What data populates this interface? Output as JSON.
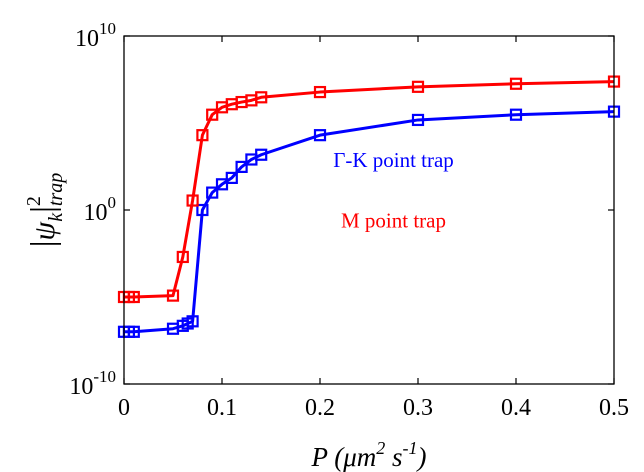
{
  "chart_data": {
    "type": "line",
    "xlabel": "P (μm2 s-1)",
    "ylabel": "|ψk|2trap",
    "xlim": [
      0,
      0.5
    ],
    "ylim": [
      1e-10,
      10000000000.0
    ],
    "yscale": "log",
    "x_ticks": [
      "0",
      "0.1",
      "0.2",
      "0.3",
      "0.4",
      "0.5"
    ],
    "x_tick_values": [
      0,
      0.1,
      0.2,
      0.3,
      0.4,
      0.5
    ],
    "y_ticks": [
      {
        "value": 1e-10,
        "base": "10",
        "exp": "-10"
      },
      {
        "value": 1,
        "base": "10",
        "exp": "0"
      },
      {
        "value": 10000000000.0,
        "base": "10",
        "exp": "10"
      }
    ],
    "grid": false,
    "series": [
      {
        "name": "M point trap",
        "color": "#ff0000",
        "marker": "square",
        "x": [
          0,
          0.005,
          0.01,
          0.05,
          0.06,
          0.07,
          0.08,
          0.09,
          0.1,
          0.11,
          0.12,
          0.13,
          0.14,
          0.2,
          0.3,
          0.4,
          0.5
        ],
        "y": [
          1e-05,
          1e-05,
          1e-05,
          1.2e-05,
          0.002,
          3.5,
          20000.0,
          300000.0,
          800000.0,
          1200000.0,
          1600000.0,
          2000000.0,
          3000000.0,
          6000000.0,
          12000000.0,
          18000000.0,
          24000000.0
        ]
      },
      {
        "name": "Γ-K point trap",
        "color": "#0000ff",
        "marker": "square",
        "x": [
          0,
          0.005,
          0.01,
          0.05,
          0.06,
          0.065,
          0.07,
          0.08,
          0.09,
          0.1,
          0.11,
          0.12,
          0.13,
          0.14,
          0.2,
          0.3,
          0.4,
          0.5
        ],
        "y": [
          1e-07,
          1e-07,
          1e-07,
          1.5e-07,
          2.2e-07,
          3e-07,
          4e-07,
          1,
          10,
          30,
          70,
          300,
          800,
          1500,
          20000.0,
          150000.0,
          300000.0,
          450000.0
        ]
      }
    ],
    "annotations": [
      {
        "text": "Γ-K point trap",
        "color": "#0000ff",
        "x": 0.275,
        "y": 300.0
      },
      {
        "text": "M point trap",
        "color": "#ff0000",
        "x": 0.275,
        "y": 0.1
      }
    ]
  }
}
